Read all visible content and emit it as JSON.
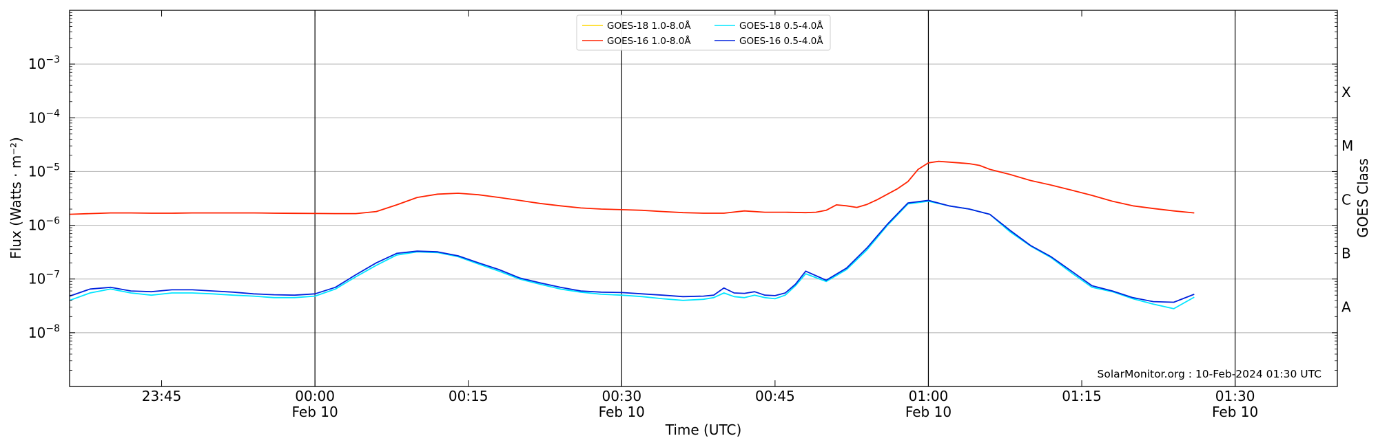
{
  "chart_data": {
    "type": "line",
    "title": "",
    "xlabel": "Time (UTC)",
    "ylabel": "Flux (Watts · m⁻²)",
    "right_axis_label": "GOES Class",
    "y_scale": "log",
    "ylim": [
      1e-09,
      0.01
    ],
    "x_range": [
      "2024-02-09 23:36",
      "2024-02-10 01:40"
    ],
    "x_ticks": [
      {
        "t": "23:45",
        "label": "23:45",
        "sublabel": ""
      },
      {
        "t": "00:00",
        "label": "00:00",
        "sublabel": "Feb 10"
      },
      {
        "t": "00:15",
        "label": "00:15",
        "sublabel": ""
      },
      {
        "t": "00:30",
        "label": "00:30",
        "sublabel": "Feb 10"
      },
      {
        "t": "00:45",
        "label": "00:45",
        "sublabel": ""
      },
      {
        "t": "01:00",
        "label": "01:00",
        "sublabel": "Feb 10"
      },
      {
        "t": "01:15",
        "label": "01:15",
        "sublabel": ""
      },
      {
        "t": "01:30",
        "label": "01:30",
        "sublabel": "Feb 10"
      }
    ],
    "y_ticks": [
      {
        "value": 1e-08,
        "base": "10",
        "exp": "−8"
      },
      {
        "value": 1e-07,
        "base": "10",
        "exp": "−7"
      },
      {
        "value": 1e-06,
        "base": "10",
        "exp": "−6"
      },
      {
        "value": 1e-05,
        "base": "10",
        "exp": "−5"
      },
      {
        "value": 0.0001,
        "base": "10",
        "exp": "−4"
      },
      {
        "value": 0.001,
        "base": "10",
        "exp": "−3"
      }
    ],
    "goes_classes": [
      {
        "label": "A",
        "value": 3e-08
      },
      {
        "label": "B",
        "value": 3e-07
      },
      {
        "label": "C",
        "value": 3e-06
      },
      {
        "label": "M",
        "value": 3e-05
      },
      {
        "label": "X",
        "value": 0.0003
      }
    ],
    "grid": true,
    "day_lines": [
      "00:00",
      "00:30",
      "01:00",
      "01:30"
    ],
    "legend_position": "top-center",
    "series": [
      {
        "name": "GOES-18 1.0-8.0Å",
        "color": "#ffd700",
        "minutes": [],
        "values": []
      },
      {
        "name": "GOES-16 1.0-8.0Å",
        "color": "#ff2200",
        "minutes": [
          0,
          2,
          4,
          6,
          8,
          10,
          12,
          14,
          16,
          18,
          20,
          22,
          24,
          26,
          28,
          30,
          32,
          34,
          36,
          38,
          40,
          42,
          44,
          46,
          48,
          50,
          52,
          54,
          56,
          58,
          60,
          62,
          64,
          66,
          68,
          70,
          72,
          73,
          74,
          75,
          76,
          77,
          78,
          79,
          80,
          81,
          82,
          83,
          84,
          85,
          86,
          87,
          88,
          89,
          90,
          92,
          94,
          96,
          98,
          100,
          102,
          104,
          106,
          108,
          110
        ],
        "values": [
          1.6e-06,
          1.65e-06,
          1.7e-06,
          1.7e-06,
          1.68e-06,
          1.68e-06,
          1.7e-06,
          1.7e-06,
          1.7e-06,
          1.7e-06,
          1.68e-06,
          1.67e-06,
          1.66e-06,
          1.65e-06,
          1.65e-06,
          1.8e-06,
          2.4e-06,
          3.3e-06,
          3.8e-06,
          3.95e-06,
          3.7e-06,
          3.3e-06,
          2.9e-06,
          2.55e-06,
          2.3e-06,
          2.1e-06,
          2e-06,
          1.95e-06,
          1.9e-06,
          1.8e-06,
          1.72e-06,
          1.68e-06,
          1.68e-06,
          1.85e-06,
          1.75e-06,
          1.75e-06,
          1.72e-06,
          1.75e-06,
          1.9e-06,
          2.4e-06,
          2.3e-06,
          2.15e-06,
          2.45e-06,
          3e-06,
          3.8e-06,
          4.8e-06,
          6.5e-06,
          1.1e-05,
          1.45e-05,
          1.55e-05,
          1.5e-05,
          1.45e-05,
          1.4e-05,
          1.3e-05,
          1.1e-05,
          8.8e-06,
          6.8e-06,
          5.6e-06,
          4.5e-06,
          3.6e-06,
          2.8e-06,
          2.3e-06,
          2.05e-06,
          1.85e-06,
          1.7e-06
        ]
      },
      {
        "name": "GOES-18 0.5-4.0Å",
        "color": "#00e5ff",
        "minutes": [
          0,
          2,
          4,
          6,
          8,
          10,
          12,
          14,
          16,
          18,
          20,
          22,
          24,
          26,
          28,
          30,
          32,
          34,
          36,
          38,
          40,
          42,
          44,
          46,
          48,
          50,
          52,
          54,
          56,
          58,
          60,
          62,
          63,
          64,
          65,
          66,
          67,
          68,
          69,
          70,
          71,
          72,
          74,
          76,
          78,
          80,
          82,
          84,
          86,
          88,
          90,
          92,
          94,
          96,
          98,
          100,
          102,
          104,
          106,
          108,
          110
        ],
        "values": [
          4e-08,
          5.5e-08,
          6.5e-08,
          5.5e-08,
          5e-08,
          5.5e-08,
          5.5e-08,
          5.3e-08,
          5e-08,
          4.8e-08,
          4.5e-08,
          4.5e-08,
          4.8e-08,
          6.5e-08,
          1.1e-07,
          1.8e-07,
          2.8e-07,
          3.2e-07,
          3.1e-07,
          2.6e-07,
          1.9e-07,
          1.4e-07,
          1e-07,
          8e-08,
          6.5e-08,
          5.7e-08,
          5.2e-08,
          5e-08,
          4.7e-08,
          4.3e-08,
          4e-08,
          4.2e-08,
          4.5e-08,
          5.5e-08,
          4.7e-08,
          4.5e-08,
          5e-08,
          4.5e-08,
          4.3e-08,
          5e-08,
          7.5e-08,
          1.25e-07,
          9e-08,
          1.5e-07,
          3.5e-07,
          1e-06,
          2.5e-06,
          2.8e-06,
          2.3e-06,
          2e-06,
          1.6e-06,
          7.5e-07,
          4.1e-07,
          2.5e-07,
          1.3e-07,
          7e-08,
          5.8e-08,
          4.3e-08,
          3.4e-08,
          2.8e-08,
          4.6e-08
        ]
      },
      {
        "name": "GOES-16 0.5-4.0Å",
        "color": "#0022dd",
        "minutes": [
          0,
          2,
          4,
          6,
          8,
          10,
          12,
          14,
          16,
          18,
          20,
          22,
          24,
          26,
          28,
          30,
          32,
          34,
          36,
          38,
          40,
          42,
          44,
          46,
          48,
          50,
          52,
          54,
          56,
          58,
          60,
          62,
          63,
          64,
          65,
          66,
          67,
          68,
          69,
          70,
          71,
          72,
          74,
          76,
          78,
          80,
          82,
          84,
          86,
          88,
          90,
          92,
          94,
          96,
          98,
          100,
          102,
          104,
          106,
          108,
          110
        ],
        "values": [
          4.8e-08,
          6.5e-08,
          7e-08,
          6e-08,
          5.8e-08,
          6.3e-08,
          6.3e-08,
          6e-08,
          5.7e-08,
          5.3e-08,
          5.1e-08,
          5e-08,
          5.3e-08,
          7e-08,
          1.2e-07,
          2e-07,
          3e-07,
          3.3e-07,
          3.2e-07,
          2.7e-07,
          2e-07,
          1.5e-07,
          1.05e-07,
          8.5e-08,
          7e-08,
          6e-08,
          5.7e-08,
          5.6e-08,
          5.3e-08,
          5e-08,
          4.7e-08,
          4.8e-08,
          5e-08,
          6.8e-08,
          5.5e-08,
          5.4e-08,
          5.8e-08,
          5e-08,
          4.9e-08,
          5.5e-08,
          8e-08,
          1.4e-07,
          9.5e-08,
          1.6e-07,
          3.8e-07,
          1.05e-06,
          2.6e-06,
          2.9e-06,
          2.3e-06,
          2e-06,
          1.6e-06,
          8e-07,
          4.2e-07,
          2.6e-07,
          1.4e-07,
          7.5e-08,
          6e-08,
          4.5e-08,
          3.8e-08,
          3.7e-08,
          5.2e-08
        ]
      }
    ]
  },
  "credit": "SolarMonitor.org : 10-Feb-2024 01:30 UTC"
}
